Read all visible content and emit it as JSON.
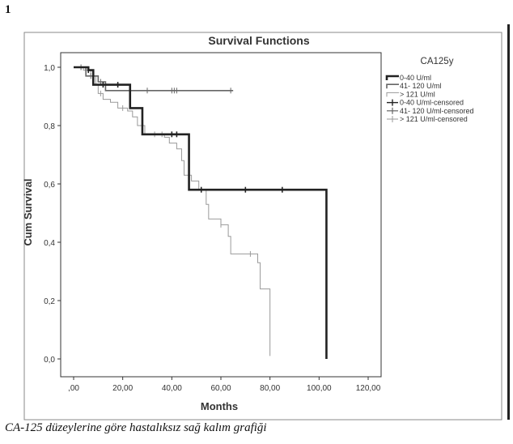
{
  "figure_number": "1",
  "caption": "CA-125 düzeylerine göre hastalıksız sağ kalım grafiği",
  "chart_data": {
    "type": "line",
    "title": "Survival Functions",
    "xlabel": "Months",
    "ylabel": "Cum Survival",
    "xlim": [
      0,
      120
    ],
    "ylim": [
      0,
      1.0
    ],
    "x_ticks": [
      ",00",
      "20,00",
      "40,00",
      "60,00",
      "80,00",
      "100,00",
      "120,00"
    ],
    "x_tick_values": [
      0,
      20,
      40,
      60,
      80,
      100,
      120
    ],
    "y_ticks": [
      "0,0",
      "0,2",
      "0,4",
      "0,6",
      "0,8",
      "1,0"
    ],
    "y_tick_values": [
      0,
      0.2,
      0.4,
      0.6,
      0.8,
      1.0
    ],
    "grid": false,
    "legend_title": "CA125y",
    "legend_position": "right",
    "legend": [
      {
        "label": "0-40 U/ml",
        "kind": "line",
        "color": "#222222",
        "width": 2.6
      },
      {
        "label": "41- 120  U/ml",
        "kind": "line",
        "color": "#666666",
        "width": 1.6
      },
      {
        "label": "> 121 U/ml",
        "kind": "line",
        "color": "#9a9a9a",
        "width": 1
      },
      {
        "label": "0-40 U/ml-censored",
        "kind": "censor",
        "color": "#222222",
        "width": 1.4
      },
      {
        "label": "41- 120  U/ml-censored",
        "kind": "censor",
        "color": "#666666",
        "width": 1.2
      },
      {
        "label": "> 121 U/ml-censored",
        "kind": "censor",
        "color": "#9a9a9a",
        "width": 1
      }
    ],
    "series": [
      {
        "name": "0-40 U/ml",
        "color": "#222222",
        "width": 2.6,
        "steps": [
          [
            0,
            1.0
          ],
          [
            6,
            0.99
          ],
          [
            8,
            0.94
          ],
          [
            22,
            0.94
          ],
          [
            23,
            0.86
          ],
          [
            27,
            0.86
          ],
          [
            28,
            0.77
          ],
          [
            46,
            0.77
          ],
          [
            47,
            0.58
          ],
          [
            103,
            0.58
          ],
          [
            103,
            0.0
          ]
        ],
        "censored": [
          [
            6,
            0.99
          ],
          [
            12,
            0.94
          ],
          [
            18,
            0.94
          ],
          [
            40,
            0.77
          ],
          [
            42,
            0.77
          ],
          [
            52,
            0.58
          ],
          [
            70,
            0.58
          ],
          [
            85,
            0.58
          ]
        ]
      },
      {
        "name": "41- 120  U/ml",
        "color": "#666666",
        "width": 1.6,
        "steps": [
          [
            0,
            1.0
          ],
          [
            5,
            0.97
          ],
          [
            10,
            0.95
          ],
          [
            13,
            0.92
          ],
          [
            65,
            0.92
          ]
        ],
        "censored": [
          [
            3,
            1.0
          ],
          [
            7,
            0.97
          ],
          [
            11,
            0.95
          ],
          [
            30,
            0.92
          ],
          [
            40,
            0.92
          ],
          [
            41,
            0.92
          ],
          [
            42,
            0.92
          ],
          [
            64,
            0.92
          ]
        ]
      },
      {
        "name": "> 121 U/ml",
        "color": "#9a9a9a",
        "width": 1,
        "steps": [
          [
            0,
            1.0
          ],
          [
            4,
            0.99
          ],
          [
            7,
            0.97
          ],
          [
            9,
            0.94
          ],
          [
            10,
            0.91
          ],
          [
            12,
            0.89
          ],
          [
            15,
            0.88
          ],
          [
            18,
            0.86
          ],
          [
            22,
            0.85
          ],
          [
            24,
            0.83
          ],
          [
            26,
            0.8
          ],
          [
            29,
            0.77
          ],
          [
            34,
            0.77
          ],
          [
            37,
            0.76
          ],
          [
            39,
            0.74
          ],
          [
            42,
            0.72
          ],
          [
            44,
            0.68
          ],
          [
            45,
            0.63
          ],
          [
            48,
            0.61
          ],
          [
            51,
            0.58
          ],
          [
            54,
            0.53
          ],
          [
            55,
            0.48
          ],
          [
            60,
            0.46
          ],
          [
            63,
            0.42
          ],
          [
            64,
            0.36
          ],
          [
            70,
            0.36
          ],
          [
            75,
            0.33
          ],
          [
            76,
            0.24
          ],
          [
            80,
            0.24
          ],
          [
            80,
            0.01
          ]
        ],
        "censored": [
          [
            5,
            0.99
          ],
          [
            11,
            0.91
          ],
          [
            20,
            0.86
          ],
          [
            33,
            0.77
          ],
          [
            36,
            0.77
          ],
          [
            47,
            0.68
          ],
          [
            60,
            0.46
          ],
          [
            72,
            0.36
          ]
        ]
      }
    ]
  }
}
